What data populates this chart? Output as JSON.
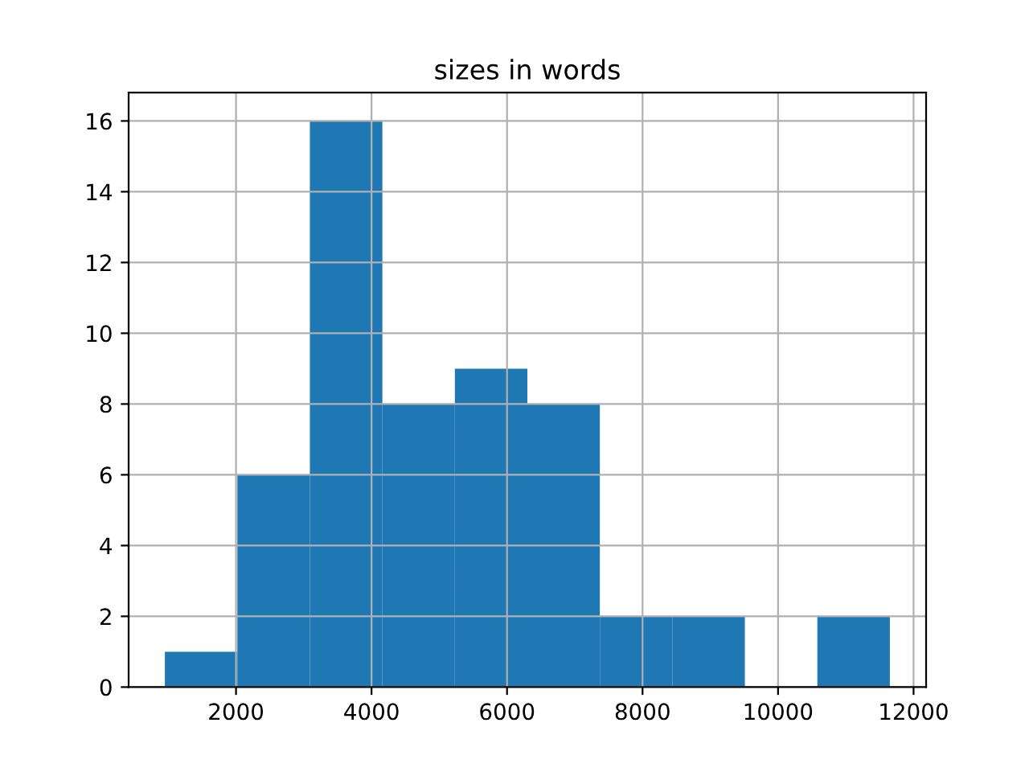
{
  "chart_data": {
    "type": "histogram",
    "title": "sizes in words",
    "bins": [
      950,
      2020,
      3090,
      4160,
      5230,
      6300,
      7370,
      8440,
      9510,
      10580,
      11650
    ],
    "values": [
      1,
      6,
      16,
      8,
      9,
      8,
      2,
      2,
      0,
      2
    ],
    "color": "#1f77b4",
    "xlim": [
      415,
      12185
    ],
    "xticks": [
      2000,
      4000,
      6000,
      8000,
      10000,
      12000
    ],
    "ylim": [
      0,
      16.8
    ],
    "yticks": [
      0,
      2,
      4,
      6,
      8,
      10,
      12,
      14,
      16
    ],
    "grid": true
  }
}
